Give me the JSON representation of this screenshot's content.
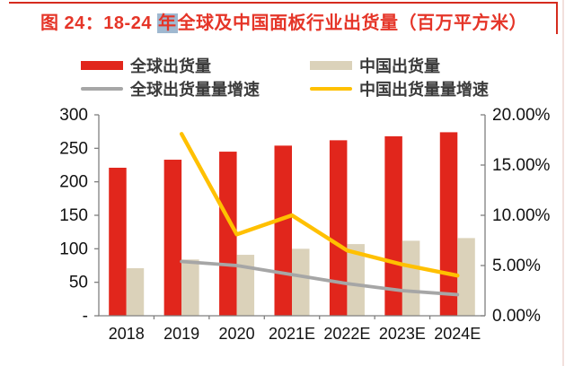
{
  "page": {
    "background": "#FFFFFF"
  },
  "header": {
    "title_prefix": "图 24：18-24 ",
    "title_highlight": "年",
    "title_suffix": "全球及中国面板行业出货量（百万平方米）",
    "title_color": "#E53528",
    "rule_color": "#D52B1E",
    "highlight_bg": "#9FB8D0"
  },
  "chart_data": {
    "type": "bar",
    "title": "18-24 年全球及中国面板行业出货量（百万平方米）",
    "categories": [
      "2018",
      "2019",
      "2020",
      "2021E",
      "2022E",
      "2023E",
      "2024E"
    ],
    "series": [
      {
        "name": "全球出货量",
        "type": "bar",
        "axis": "left",
        "color": "#E1261C",
        "values": [
          221,
          233,
          245,
          254,
          262,
          268,
          274
        ]
      },
      {
        "name": "中国出货量",
        "type": "bar",
        "axis": "left",
        "color": "#DBD2BA",
        "values": [
          71,
          84,
          91,
          100,
          107,
          112,
          116
        ]
      },
      {
        "name": "全球出货量量增速",
        "type": "line",
        "axis": "right",
        "color": "#A6A6A6",
        "values": [
          null,
          5.4,
          5.0,
          4.1,
          3.2,
          2.5,
          2.1
        ]
      },
      {
        "name": "中国出货量量增速",
        "type": "line",
        "axis": "right",
        "color": "#FFC000",
        "values": [
          null,
          18.1,
          8.1,
          10.0,
          6.5,
          5.1,
          4.0
        ]
      }
    ],
    "left_axis": {
      "min": 0,
      "max": 300,
      "ticks": [
        {
          "v": 300,
          "label": "300"
        },
        {
          "v": 250,
          "label": "250"
        },
        {
          "v": 200,
          "label": "200"
        },
        {
          "v": 150,
          "label": "150"
        },
        {
          "v": 100,
          "label": "100"
        },
        {
          "v": 50,
          "label": "50"
        },
        {
          "v": 0,
          "label": "-"
        }
      ]
    },
    "right_axis": {
      "min": 0,
      "max": 20,
      "ticks": [
        {
          "v": 20,
          "label": "20.00%"
        },
        {
          "v": 15,
          "label": "15.00%"
        },
        {
          "v": 10,
          "label": "10.00%"
        },
        {
          "v": 5,
          "label": "5.00%"
        },
        {
          "v": 0,
          "label": "0.00%"
        }
      ]
    },
    "legend_position": "top",
    "grid": false,
    "axis_color": "#7F7F7F",
    "label_color": "#111111"
  }
}
